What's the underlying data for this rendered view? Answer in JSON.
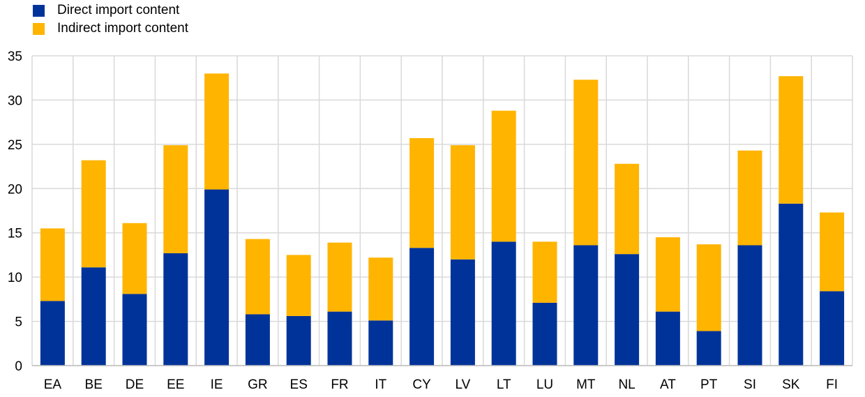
{
  "chart_data": {
    "type": "bar",
    "stacked": true,
    "title": "",
    "xlabel": "",
    "ylabel": "",
    "ylim": [
      0,
      35
    ],
    "yticks": [
      0,
      5,
      10,
      15,
      20,
      25,
      30,
      35
    ],
    "grid": true,
    "legend_position": "top-left",
    "categories": [
      "EA",
      "BE",
      "DE",
      "EE",
      "IE",
      "GR",
      "ES",
      "FR",
      "IT",
      "CY",
      "LV",
      "LT",
      "LU",
      "MT",
      "NL",
      "AT",
      "PT",
      "SI",
      "SK",
      "FI"
    ],
    "series": [
      {
        "name": "Direct import content",
        "color": "#003399",
        "values": [
          7.3,
          11.1,
          8.1,
          12.7,
          19.9,
          5.8,
          5.6,
          6.1,
          5.1,
          13.3,
          12.0,
          14.0,
          7.1,
          13.6,
          12.6,
          6.1,
          3.9,
          13.6,
          18.3,
          8.4
        ]
      },
      {
        "name": "Indirect import content",
        "color": "#FFB400",
        "values": [
          8.2,
          12.1,
          8.0,
          12.2,
          13.1,
          8.5,
          6.9,
          7.8,
          7.1,
          12.4,
          12.9,
          14.8,
          6.9,
          18.7,
          10.2,
          8.4,
          9.8,
          10.7,
          14.4,
          8.9
        ]
      }
    ]
  }
}
